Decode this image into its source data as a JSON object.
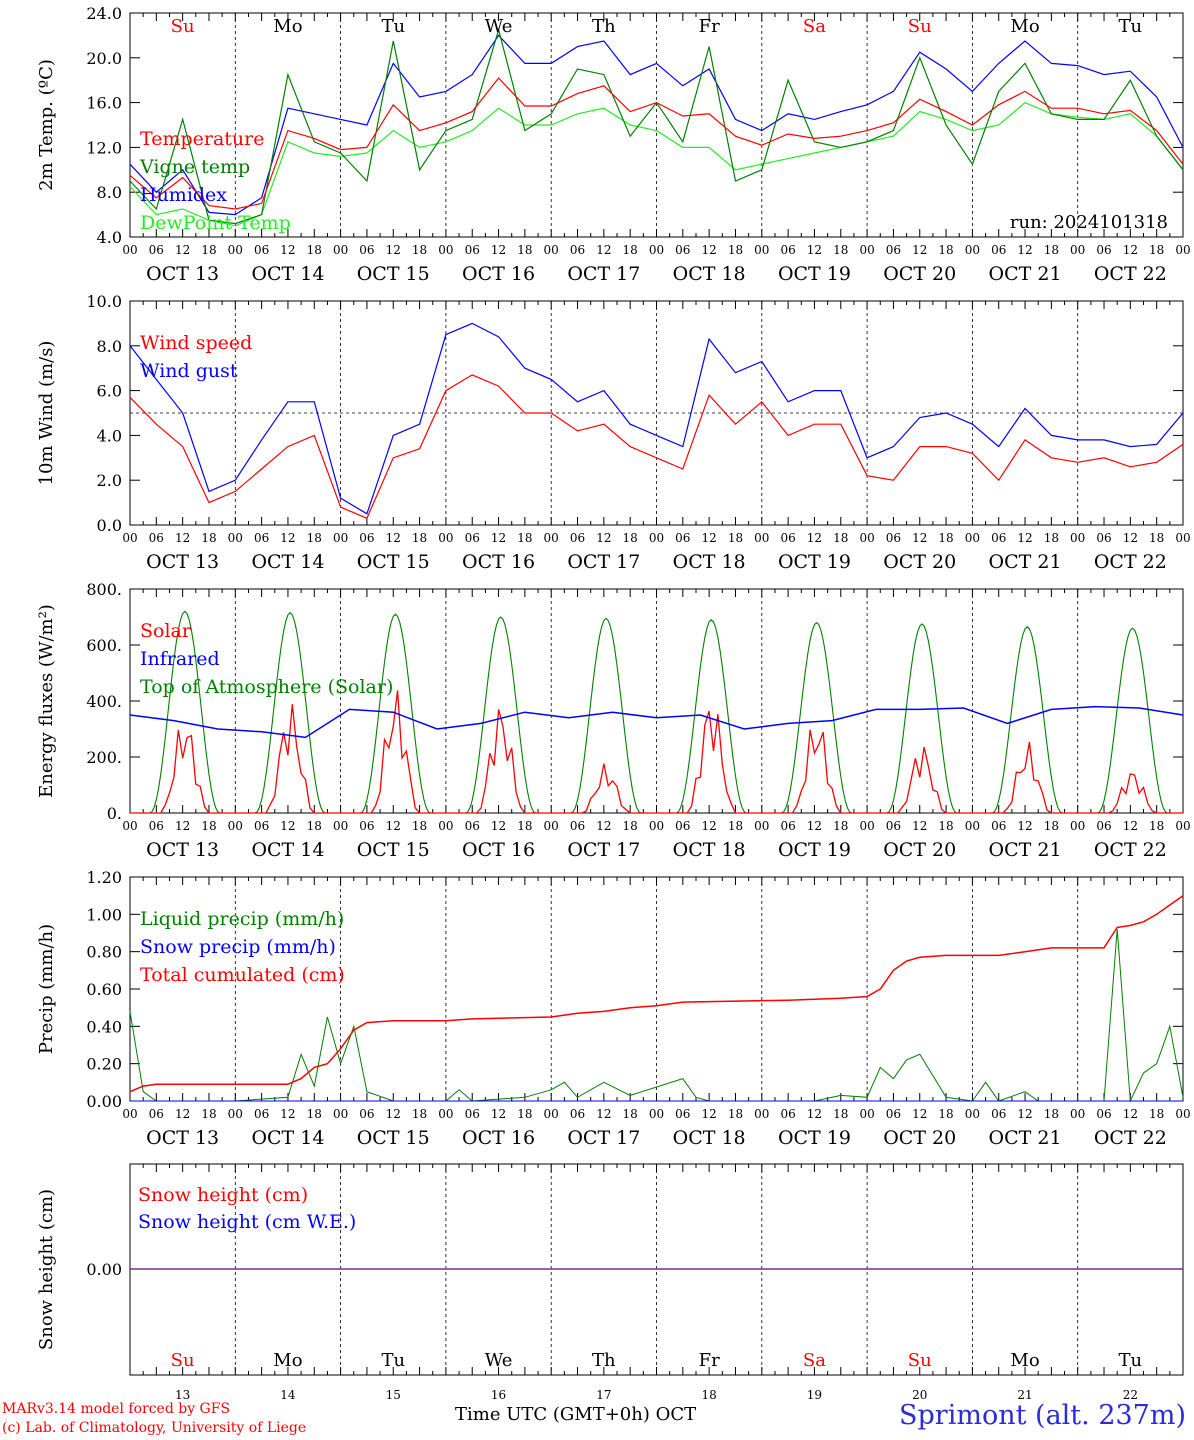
{
  "chart_data": [
    {
      "type": "line",
      "ylabel": "2m Temp. (ºC)",
      "ylim": [
        4,
        24
      ],
      "yticks": [
        "4.0",
        "8.0",
        "12.0",
        "16.0",
        "20.0",
        "24.0"
      ],
      "annotation": "run: 2024101318",
      "day_labels": [
        "Su",
        "Mo",
        "Tu",
        "We",
        "Th",
        "Fr",
        "Sa",
        "Su",
        "Mo",
        "Tu"
      ],
      "x_hours": [
        0,
        6,
        12,
        18,
        24,
        30,
        36,
        42,
        48,
        54,
        60,
        66,
        72,
        78,
        84,
        90,
        96,
        102,
        108,
        114,
        120,
        126,
        132,
        138,
        144,
        150,
        156,
        162,
        168,
        174,
        180,
        186,
        192,
        198,
        204,
        210,
        216,
        222,
        228,
        234,
        240
      ],
      "series": [
        {
          "name": "Temperature",
          "color": "#ff0000",
          "values": [
            9.5,
            7.5,
            9.3,
            6.8,
            6.5,
            7.0,
            13.5,
            12.8,
            11.8,
            12.0,
            15.8,
            13.5,
            14.2,
            15.2,
            18.2,
            15.7,
            15.7,
            16.8,
            17.5,
            15.2,
            16.0,
            14.8,
            15.0,
            13.0,
            12.2,
            13.2,
            12.8,
            13.0,
            13.5,
            14.2,
            16.3,
            15.2,
            14.0,
            15.8,
            17.0,
            15.5,
            15.5,
            15.0,
            15.3,
            13.5,
            10.5
          ]
        },
        {
          "name": "Vigne temp",
          "color": "#008000",
          "values": [
            9.0,
            6.5,
            14.5,
            5.5,
            5.2,
            6.0,
            18.5,
            12.5,
            11.5,
            9.0,
            21.5,
            10.0,
            13.5,
            14.5,
            22.5,
            13.5,
            15.0,
            19.0,
            18.5,
            13.0,
            16.0,
            12.5,
            21.0,
            9.0,
            10.0,
            18.0,
            12.5,
            12.0,
            12.5,
            13.5,
            20.0,
            14.0,
            10.5,
            17.0,
            19.5,
            15.0,
            14.5,
            14.5,
            18.0,
            13.0,
            10.0
          ]
        },
        {
          "name": "Humidex",
          "color": "#0000ff",
          "values": [
            10.5,
            8.0,
            10.0,
            6.2,
            6.0,
            7.5,
            15.5,
            15.0,
            14.5,
            14.0,
            19.5,
            16.5,
            17.0,
            18.5,
            22.0,
            19.5,
            19.5,
            21.0,
            21.5,
            18.5,
            19.5,
            17.5,
            19.0,
            14.5,
            13.5,
            15.0,
            14.5,
            15.2,
            15.8,
            17.0,
            20.5,
            19.0,
            17.0,
            19.5,
            21.5,
            19.5,
            19.3,
            18.5,
            18.8,
            16.5,
            12.0
          ]
        },
        {
          "name": "DewPoint Temp",
          "color": "#22ee22",
          "values": [
            8.5,
            6.0,
            6.5,
            5.5,
            5.0,
            6.0,
            12.5,
            11.5,
            11.2,
            11.5,
            13.5,
            12.0,
            12.5,
            13.5,
            15.5,
            14.0,
            14.0,
            15.0,
            15.5,
            14.0,
            13.5,
            12.0,
            12.0,
            10.0,
            10.5,
            11.0,
            11.5,
            12.0,
            12.5,
            13.0,
            15.2,
            14.5,
            13.5,
            14.0,
            16.0,
            15.0,
            14.7,
            14.5,
            15.0,
            13.0,
            10.0
          ]
        }
      ]
    },
    {
      "type": "line",
      "ylabel": "10m Wind (m/s)",
      "ylim": [
        0,
        10
      ],
      "yticks": [
        "0.0",
        "2.0",
        "4.0",
        "6.0",
        "8.0",
        "10.0"
      ],
      "reference_line": 5,
      "x_hours": [
        0,
        6,
        12,
        18,
        24,
        30,
        36,
        42,
        48,
        54,
        60,
        66,
        72,
        78,
        84,
        90,
        96,
        102,
        108,
        114,
        120,
        126,
        132,
        138,
        144,
        150,
        156,
        162,
        168,
        174,
        180,
        186,
        192,
        198,
        204,
        210,
        216,
        222,
        228,
        234,
        240
      ],
      "series": [
        {
          "name": "Wind speed",
          "color": "#ff0000",
          "values": [
            5.7,
            4.5,
            3.5,
            1.0,
            1.5,
            2.5,
            3.5,
            4.0,
            0.8,
            0.3,
            3.0,
            3.4,
            6.0,
            6.7,
            6.2,
            5.0,
            5.0,
            4.2,
            4.5,
            3.5,
            3.0,
            2.5,
            5.8,
            4.5,
            5.5,
            4.0,
            4.5,
            4.5,
            2.2,
            2.0,
            3.5,
            3.5,
            3.2,
            2.0,
            3.8,
            3.0,
            2.8,
            3.0,
            2.6,
            2.8,
            3.6
          ]
        },
        {
          "name": "Wind gust",
          "color": "#0000ff",
          "values": [
            8.0,
            6.5,
            5.0,
            1.5,
            2.0,
            3.8,
            5.5,
            5.5,
            1.2,
            0.5,
            4.0,
            4.5,
            8.5,
            9.0,
            8.4,
            7.0,
            6.5,
            5.5,
            6.0,
            4.5,
            4.0,
            3.5,
            8.3,
            6.8,
            7.3,
            5.5,
            6.0,
            6.0,
            3.0,
            3.5,
            4.8,
            5.0,
            4.5,
            3.5,
            5.2,
            4.0,
            3.8,
            3.8,
            3.5,
            3.6,
            5.0
          ]
        }
      ]
    },
    {
      "type": "line",
      "ylabel": "Energy fluxes (W/m²)",
      "ylim": [
        0,
        800
      ],
      "yticks": [
        "0.",
        "200.",
        "400.",
        "600.",
        "800."
      ],
      "days": 10,
      "series": [
        {
          "name": "Solar",
          "color": "#ff0000",
          "peaks": [
            360,
            410,
            460,
            410,
            180,
            440,
            360,
            260,
            260,
            165
          ]
        },
        {
          "name": "Infrared",
          "color": "#0000ff",
          "values": [
            350,
            330,
            300,
            290,
            270,
            370,
            360,
            300,
            320,
            360,
            340,
            360,
            340,
            350,
            300,
            320,
            330,
            370,
            370,
            375,
            320,
            370,
            380,
            375,
            350
          ]
        },
        {
          "name": "Top of Atmosphere (Solar)",
          "color": "#008000",
          "peaks": [
            720,
            715,
            710,
            700,
            695,
            690,
            680,
            675,
            665,
            660
          ]
        }
      ]
    },
    {
      "type": "line",
      "ylabel": "Precip (mm/h)",
      "ylim": [
        0,
        1.2
      ],
      "yticks": [
        "0.00",
        "0.20",
        "0.40",
        "0.60",
        "0.80",
        "1.00",
        "1.20"
      ],
      "series": [
        {
          "name": "Liquid precip (mm/h)",
          "color": "#008000",
          "x": [
            0,
            3,
            6,
            12,
            24,
            36,
            39,
            42,
            45,
            48,
            51,
            54,
            60,
            72,
            75,
            78,
            90,
            96,
            99,
            102,
            108,
            114,
            126,
            129,
            132,
            144,
            156,
            162,
            168,
            171,
            174,
            177,
            180,
            186,
            192,
            195,
            198,
            204,
            207,
            210,
            216,
            222,
            225,
            228,
            231,
            234,
            237,
            240
          ],
          "values": [
            0.48,
            0.05,
            0.0,
            0.0,
            0.0,
            0.02,
            0.25,
            0.08,
            0.45,
            0.2,
            0.4,
            0.05,
            0.0,
            0.0,
            0.06,
            0.0,
            0.02,
            0.06,
            0.1,
            0.02,
            0.1,
            0.03,
            0.12,
            0.02,
            0.0,
            0.0,
            0.0,
            0.03,
            0.02,
            0.18,
            0.12,
            0.22,
            0.25,
            0.02,
            0.0,
            0.1,
            0.0,
            0.05,
            0.0,
            0.0,
            0.0,
            0.0,
            0.92,
            0.0,
            0.15,
            0.2,
            0.4,
            0.02
          ]
        },
        {
          "name": "Snow precip (mm/h)",
          "color": "#0000ff",
          "x": [
            0,
            240
          ],
          "values": [
            0,
            0
          ]
        },
        {
          "name": "Total cumulated (cm)",
          "color": "#ff0000",
          "x": [
            0,
            3,
            6,
            36,
            39,
            42,
            45,
            48,
            51,
            54,
            60,
            72,
            78,
            96,
            102,
            108,
            114,
            120,
            126,
            150,
            162,
            168,
            171,
            174,
            177,
            180,
            186,
            198,
            204,
            210,
            216,
            222,
            225,
            228,
            231,
            234,
            237,
            240
          ],
          "values": [
            0.05,
            0.08,
            0.09,
            0.09,
            0.12,
            0.18,
            0.2,
            0.28,
            0.38,
            0.42,
            0.43,
            0.43,
            0.44,
            0.45,
            0.47,
            0.48,
            0.5,
            0.51,
            0.53,
            0.54,
            0.55,
            0.56,
            0.6,
            0.7,
            0.75,
            0.77,
            0.78,
            0.78,
            0.8,
            0.82,
            0.82,
            0.82,
            0.93,
            0.94,
            0.96,
            1.0,
            1.05,
            1.1
          ]
        }
      ]
    },
    {
      "type": "line",
      "ylabel": "Snow height (cm)",
      "yticks": [
        "0.00"
      ],
      "series": [
        {
          "name": "Snow height (cm)",
          "color": "#ff0000",
          "values": [
            0,
            0
          ]
        },
        {
          "name": "Snow height (cm W.E.)",
          "color": "#0000ff",
          "values": [
            0,
            0
          ]
        }
      ],
      "day_labels": [
        "Su",
        "Mo",
        "Tu",
        "We",
        "Th",
        "Fr",
        "Sa",
        "Su",
        "Mo",
        "Tu"
      ],
      "day_numbers": [
        "13",
        "14",
        "15",
        "16",
        "17",
        "18",
        "19",
        "20",
        "21",
        "22"
      ]
    }
  ],
  "x_axis": {
    "hour_labels": [
      "00",
      "06",
      "12",
      "18"
    ],
    "final_label": "00",
    "date_labels": [
      "OCT 13",
      "OCT 14",
      "OCT 15",
      "OCT 16",
      "OCT 17",
      "OCT 18",
      "OCT 19",
      "OCT 20",
      "OCT 21",
      "OCT 22"
    ],
    "title": "Time UTC (GMT+0h)",
    "month": "OCT"
  },
  "colors": {
    "weekend_day": "#ff0000",
    "weekday": "#000000"
  },
  "weekend_flags": [
    true,
    false,
    false,
    false,
    false,
    false,
    true,
    true,
    false,
    false
  ],
  "footer": {
    "credit_line1": "MARv3.14 model forced by GFS",
    "credit_line2": "(c) Lab. of Climatology, University of Liege",
    "station": "Sprimont (alt. 237m)"
  }
}
